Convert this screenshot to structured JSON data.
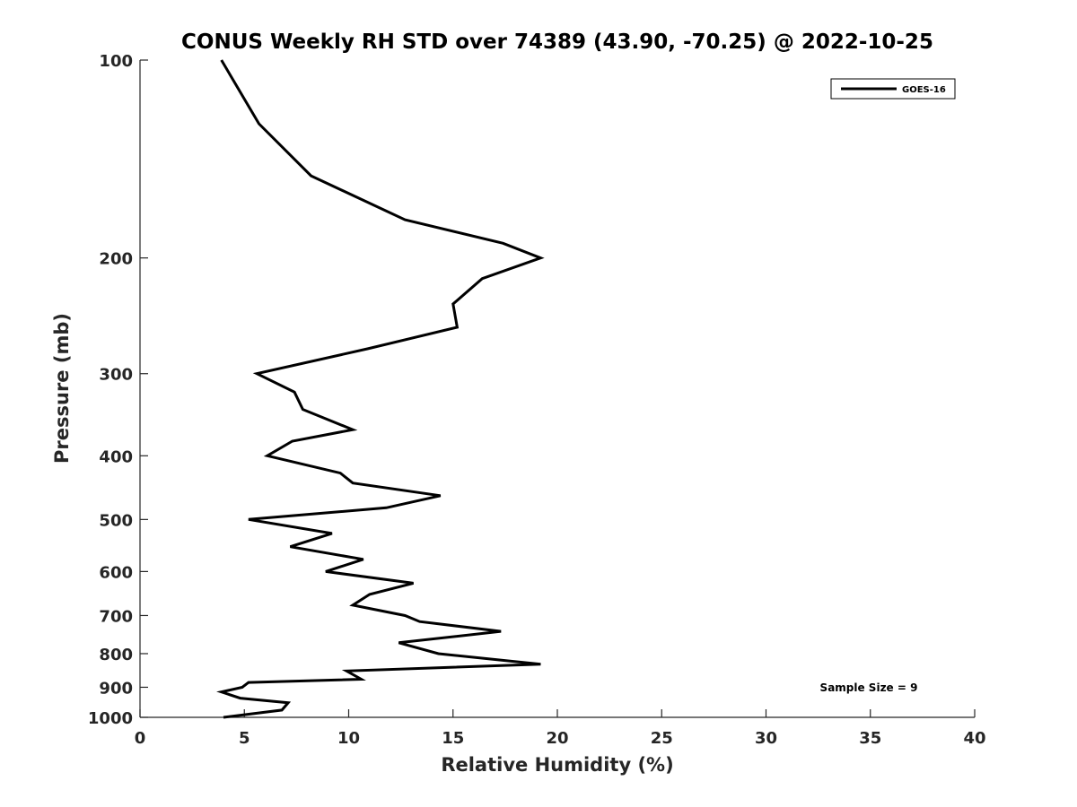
{
  "chart_data": {
    "type": "line",
    "title": "CONUS Weekly RH STD over 74389 (43.90, -70.25) @ 2022-10-25",
    "xlabel": "Relative Humidity (%)",
    "ylabel": "Pressure (mb)",
    "xlim": [
      0,
      40
    ],
    "ylim": [
      100,
      1000
    ],
    "y_scale": "log",
    "y_reversed": true,
    "xticks": [
      0,
      5,
      10,
      15,
      20,
      25,
      30,
      35,
      40
    ],
    "yticks": [
      100,
      200,
      300,
      400,
      500,
      600,
      700,
      800,
      900,
      1000
    ],
    "legend_position": "top-right",
    "annotation": "Sample Size = 9",
    "series": [
      {
        "name": "GOES-16",
        "color": "#000000",
        "x": [
          3.9,
          5.7,
          8.2,
          12.7,
          17.4,
          19.2,
          16.4,
          15.0,
          15.2,
          10.9,
          5.6,
          7.4,
          7.8,
          10.2,
          7.3,
          6.1,
          9.6,
          10.2,
          14.4,
          11.8,
          5.2,
          9.2,
          7.2,
          10.7,
          8.9,
          13.1,
          11.0,
          10.2,
          12.7,
          13.4,
          17.3,
          12.4,
          14.3,
          19.2,
          9.9,
          10.6,
          5.2,
          4.9,
          3.9,
          4.8,
          7.1,
          6.8,
          4.0
        ],
        "y": [
          100,
          125,
          150,
          175,
          190,
          200,
          215,
          235,
          255,
          275,
          300,
          320,
          340,
          365,
          380,
          400,
          425,
          440,
          460,
          480,
          500,
          525,
          550,
          575,
          600,
          625,
          650,
          675,
          700,
          715,
          740,
          770,
          800,
          830,
          850,
          875,
          885,
          900,
          915,
          935,
          950,
          975,
          1000
        ]
      }
    ]
  }
}
